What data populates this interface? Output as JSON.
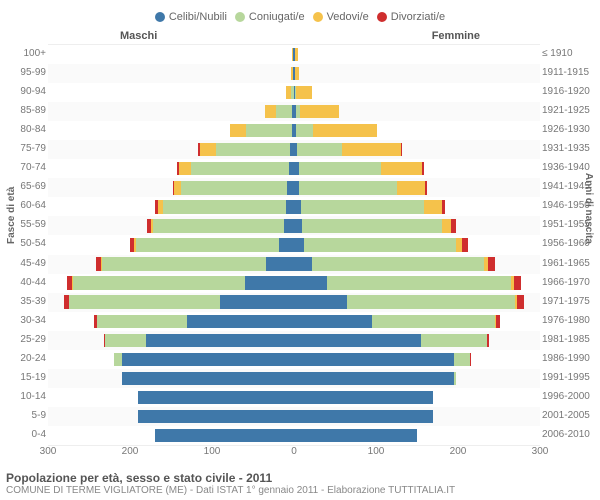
{
  "chart": {
    "type": "population-pyramid",
    "title": "Popolazione per età, sesso e stato civile - 2011",
    "subtitle": "COMUNE DI TERME VIGLIATORE (ME) - Dati ISTAT 1° gennaio 2011 - Elaborazione TUTTITALIA.IT",
    "legend": [
      {
        "label": "Celibi/Nubili",
        "color": "#3f78a9"
      },
      {
        "label": "Coniugati/e",
        "color": "#b7d79c"
      },
      {
        "label": "Vedovi/e",
        "color": "#f5c24b"
      },
      {
        "label": "Divorziati/e",
        "color": "#cf2e2e"
      }
    ],
    "left_header": "Maschi",
    "right_header": "Femmine",
    "y_left_title": "Fasce di età",
    "y_right_title": "Anni di nascita",
    "x_label": "",
    "x_max": 300,
    "x_ticks": [
      300,
      200,
      100,
      0,
      100,
      200,
      300
    ],
    "background_color": "#fafafa",
    "grid_color": "#eeeeee",
    "mid_line_color": "#bbbbbb",
    "font_family": "Arial",
    "label_fontsize": 10,
    "age_labels": [
      "100+",
      "95-99",
      "90-94",
      "85-89",
      "80-84",
      "75-79",
      "70-74",
      "65-69",
      "60-64",
      "55-59",
      "50-54",
      "45-49",
      "40-44",
      "35-39",
      "30-34",
      "25-29",
      "20-24",
      "15-19",
      "10-14",
      "5-9",
      "0-4"
    ],
    "year_labels": [
      "≤ 1910",
      "1911-1915",
      "1916-1920",
      "1921-1925",
      "1926-1930",
      "1931-1935",
      "1936-1940",
      "1941-1945",
      "1946-1950",
      "1951-1955",
      "1956-1960",
      "1961-1965",
      "1966-1970",
      "1971-1975",
      "1976-1980",
      "1981-1985",
      "1986-1990",
      "1991-1995",
      "1996-2000",
      "2001-2005",
      "2006-2010"
    ],
    "male": [
      {
        "single": 1,
        "married": 0,
        "widowed": 2,
        "divorced": 0
      },
      {
        "single": 1,
        "married": 0,
        "widowed": 3,
        "divorced": 0
      },
      {
        "single": 0,
        "married": 4,
        "widowed": 6,
        "divorced": 0
      },
      {
        "single": 2,
        "married": 20,
        "widowed": 14,
        "divorced": 0
      },
      {
        "single": 3,
        "married": 55,
        "widowed": 20,
        "divorced": 0
      },
      {
        "single": 5,
        "married": 90,
        "widowed": 20,
        "divorced": 2
      },
      {
        "single": 6,
        "married": 120,
        "widowed": 14,
        "divorced": 3
      },
      {
        "single": 8,
        "married": 130,
        "widowed": 8,
        "divorced": 2
      },
      {
        "single": 10,
        "married": 150,
        "widowed": 6,
        "divorced": 3
      },
      {
        "single": 12,
        "married": 160,
        "widowed": 3,
        "divorced": 4
      },
      {
        "single": 18,
        "married": 175,
        "widowed": 2,
        "divorced": 5
      },
      {
        "single": 34,
        "married": 200,
        "widowed": 1,
        "divorced": 6
      },
      {
        "single": 60,
        "married": 210,
        "widowed": 1,
        "divorced": 6
      },
      {
        "single": 90,
        "married": 185,
        "widowed": 0,
        "divorced": 5
      },
      {
        "single": 130,
        "married": 110,
        "widowed": 0,
        "divorced": 4
      },
      {
        "single": 180,
        "married": 50,
        "widowed": 0,
        "divorced": 2
      },
      {
        "single": 210,
        "married": 10,
        "widowed": 0,
        "divorced": 0
      },
      {
        "single": 210,
        "married": 0,
        "widowed": 0,
        "divorced": 0
      },
      {
        "single": 190,
        "married": 0,
        "widowed": 0,
        "divorced": 0
      },
      {
        "single": 190,
        "married": 0,
        "widowed": 0,
        "divorced": 0
      },
      {
        "single": 170,
        "married": 0,
        "widowed": 0,
        "divorced": 0
      }
    ],
    "female": [
      {
        "single": 1,
        "married": 0,
        "widowed": 4,
        "divorced": 0
      },
      {
        "single": 1,
        "married": 0,
        "widowed": 5,
        "divorced": 0
      },
      {
        "single": 1,
        "married": 1,
        "widowed": 20,
        "divorced": 0
      },
      {
        "single": 2,
        "married": 5,
        "widowed": 48,
        "divorced": 0
      },
      {
        "single": 3,
        "married": 20,
        "widowed": 78,
        "divorced": 0
      },
      {
        "single": 4,
        "married": 55,
        "widowed": 72,
        "divorced": 1
      },
      {
        "single": 6,
        "married": 100,
        "widowed": 50,
        "divorced": 2
      },
      {
        "single": 6,
        "married": 120,
        "widowed": 34,
        "divorced": 2
      },
      {
        "single": 8,
        "married": 150,
        "widowed": 22,
        "divorced": 4
      },
      {
        "single": 10,
        "married": 170,
        "widowed": 12,
        "divorced": 5
      },
      {
        "single": 12,
        "married": 185,
        "widowed": 8,
        "divorced": 7
      },
      {
        "single": 22,
        "married": 210,
        "widowed": 5,
        "divorced": 8
      },
      {
        "single": 40,
        "married": 225,
        "widowed": 3,
        "divorced": 9
      },
      {
        "single": 65,
        "married": 205,
        "widowed": 2,
        "divorced": 8
      },
      {
        "single": 95,
        "married": 150,
        "widowed": 1,
        "divorced": 5
      },
      {
        "single": 155,
        "married": 80,
        "widowed": 0,
        "divorced": 3
      },
      {
        "single": 195,
        "married": 20,
        "widowed": 0,
        "divorced": 1
      },
      {
        "single": 195,
        "married": 2,
        "widowed": 0,
        "divorced": 0
      },
      {
        "single": 170,
        "married": 0,
        "widowed": 0,
        "divorced": 0
      },
      {
        "single": 170,
        "married": 0,
        "widowed": 0,
        "divorced": 0
      },
      {
        "single": 150,
        "married": 0,
        "widowed": 0,
        "divorced": 0
      }
    ]
  }
}
